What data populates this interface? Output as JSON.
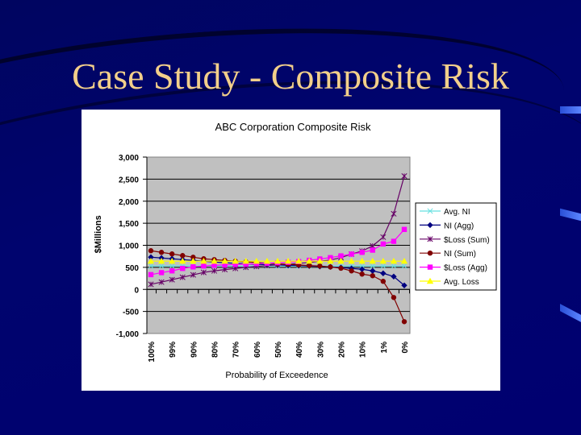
{
  "slide": {
    "title": "Case Study - Composite Risk"
  },
  "chart_data": {
    "type": "line",
    "title": "ABC Corporation Composite Risk",
    "xlabel": "Probability of Exceedence",
    "ylabel": "$Millions",
    "ylim": [
      -1000,
      3000
    ],
    "yticks": [
      3000,
      2500,
      2000,
      1500,
      1000,
      500,
      0,
      -500,
      -1000
    ],
    "ytick_labels": [
      "3,000",
      "2,500",
      "2,000",
      "1,500",
      "1,000",
      "500",
      "0",
      "-500",
      "-1,000"
    ],
    "xtick_labels": [
      "100%",
      "99%",
      "90%",
      "80%",
      "70%",
      "60%",
      "50%",
      "40%",
      "30%",
      "20%",
      "10%",
      "1%",
      "0%"
    ],
    "grid": true,
    "legend_position": "right",
    "point_count": 25,
    "series": [
      {
        "name": "Avg. NI",
        "color": "#66e0e0",
        "marker": "x",
        "values": [
          530,
          530,
          530,
          530,
          530,
          530,
          530,
          530,
          530,
          530,
          530,
          530,
          530,
          530,
          530,
          530,
          530,
          530,
          530,
          530,
          530,
          530,
          530,
          530,
          530
        ]
      },
      {
        "name": "NI (Agg)",
        "color": "#000080",
        "marker": "diamond",
        "values": [
          730,
          712,
          694,
          675,
          657,
          640,
          620,
          605,
          590,
          580,
          570,
          560,
          555,
          545,
          540,
          530,
          520,
          510,
          495,
          475,
          457,
          420,
          365,
          292,
          91
        ]
      },
      {
        "name": "$Loss (Sum)",
        "color": "#660066",
        "marker": "asterisk",
        "values": [
          115,
          165,
          220,
          275,
          330,
          385,
          420,
          450,
          475,
          500,
          520,
          540,
          555,
          570,
          590,
          610,
          640,
          665,
          720,
          800,
          870,
          985,
          1185,
          1715,
          2570
        ]
      },
      {
        "name": "NI (Sum)",
        "color": "#800000",
        "marker": "circle",
        "values": [
          877,
          840,
          804,
          767,
          730,
          694,
          675,
          657,
          640,
          625,
          610,
          595,
          580,
          570,
          555,
          540,
          530,
          510,
          480,
          420,
          347,
          310,
          183,
          -183,
          -731
        ]
      },
      {
        "name": "$Loss (Agg)",
        "color": "#ff00ff",
        "marker": "square",
        "values": [
          335,
          380,
          420,
          475,
          510,
          530,
          545,
          555,
          565,
          575,
          585,
          595,
          605,
          615,
          630,
          660,
          690,
          720,
          760,
          800,
          840,
          890,
          1030,
          1090,
          1360
        ]
      },
      {
        "name": "Avg. Loss",
        "color": "#ffff00",
        "marker": "triangle",
        "values": [
          640,
          640,
          640,
          640,
          640,
          640,
          640,
          640,
          640,
          640,
          640,
          640,
          640,
          640,
          640,
          640,
          640,
          640,
          640,
          640,
          640,
          640,
          640,
          640,
          640
        ]
      }
    ]
  }
}
